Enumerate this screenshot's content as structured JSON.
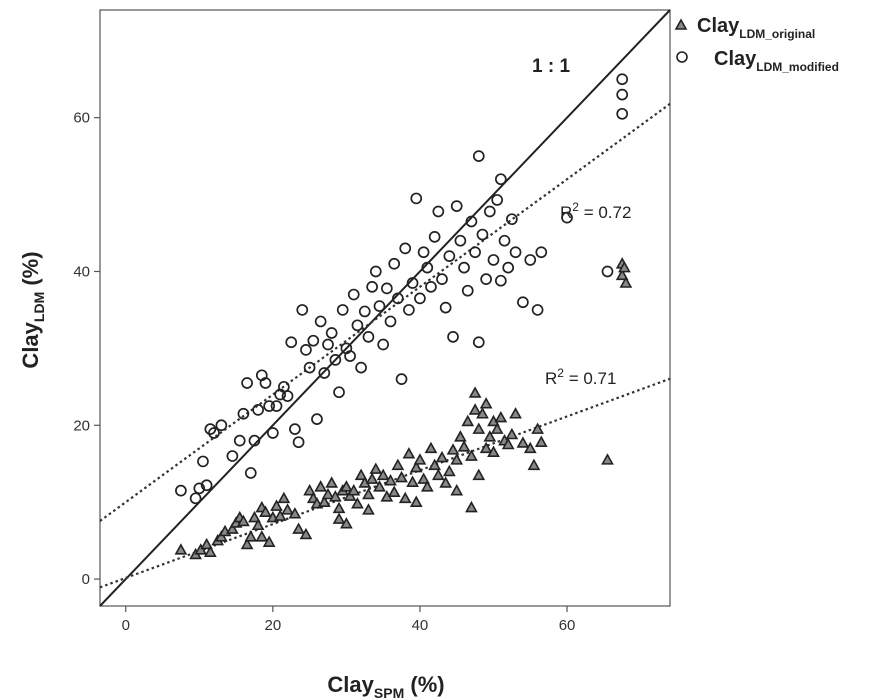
{
  "chart_data": {
    "type": "scatter",
    "title": "",
    "xlabel": {
      "main": "Clay",
      "sub": "SPM",
      "suffix": " (%)"
    },
    "ylabel": {
      "main": "Clay",
      "sub": "LDM",
      "suffix": " (%)"
    },
    "xlim": [
      -3.5,
      74
    ],
    "ylim": [
      -3.5,
      74
    ],
    "xticks": [
      0,
      20,
      40,
      60
    ],
    "yticks": [
      0,
      20,
      40,
      60
    ],
    "grid": false,
    "legend_position": "top-right",
    "identity_line_label": "1 : 1",
    "series": [
      {
        "name": "Clay",
        "name_sub": "LDM_original",
        "marker": "triangle",
        "fit": {
          "slope": 0.35,
          "intercept": 0.15,
          "label": "R",
          "label_sup": "2",
          "label_value": " = 0.71"
        },
        "points": [
          [
            7.5,
            3.8
          ],
          [
            9.5,
            3.2
          ],
          [
            10.2,
            3.8
          ],
          [
            11,
            4.5
          ],
          [
            11.5,
            3.5
          ],
          [
            12.5,
            5
          ],
          [
            13,
            5.5
          ],
          [
            13.5,
            6.2
          ],
          [
            14.5,
            6.5
          ],
          [
            15,
            7.3
          ],
          [
            15.5,
            8
          ],
          [
            16,
            7.5
          ],
          [
            16.5,
            4.5
          ],
          [
            17,
            5.5
          ],
          [
            17.5,
            8
          ],
          [
            18,
            7
          ],
          [
            18.5,
            5.5
          ],
          [
            18.5,
            9.3
          ],
          [
            19,
            8.7
          ],
          [
            19.5,
            4.8
          ],
          [
            20,
            8
          ],
          [
            20.5,
            9.5
          ],
          [
            21,
            8.2
          ],
          [
            21.5,
            10.5
          ],
          [
            22,
            9
          ],
          [
            23,
            8.5
          ],
          [
            23.5,
            6.5
          ],
          [
            24.5,
            5.8
          ],
          [
            25,
            11.5
          ],
          [
            25.5,
            10.5
          ],
          [
            26,
            9.8
          ],
          [
            26.5,
            12
          ],
          [
            27,
            10
          ],
          [
            27.5,
            11
          ],
          [
            28,
            12.5
          ],
          [
            28.5,
            10.7
          ],
          [
            29,
            9.2
          ],
          [
            29,
            7.8
          ],
          [
            29.5,
            11.5
          ],
          [
            30,
            12
          ],
          [
            30,
            7.2
          ],
          [
            30.5,
            10.8
          ],
          [
            31,
            11.5
          ],
          [
            31.5,
            9.8
          ],
          [
            32,
            13.5
          ],
          [
            32.5,
            12.5
          ],
          [
            33,
            11
          ],
          [
            33,
            9
          ],
          [
            33.5,
            13
          ],
          [
            34,
            14.3
          ],
          [
            34.5,
            12
          ],
          [
            35,
            13.5
          ],
          [
            35.5,
            10.7
          ],
          [
            36,
            12.8
          ],
          [
            36.5,
            11.3
          ],
          [
            37,
            14.8
          ],
          [
            37.5,
            13.2
          ],
          [
            38,
            10.5
          ],
          [
            38.5,
            16.3
          ],
          [
            39,
            12.6
          ],
          [
            39.5,
            10
          ],
          [
            39.5,
            14.5
          ],
          [
            40,
            15.5
          ],
          [
            40.5,
            13
          ],
          [
            41,
            12
          ],
          [
            41.5,
            17
          ],
          [
            42,
            14.8
          ],
          [
            42.5,
            13.5
          ],
          [
            43,
            15.8
          ],
          [
            43.5,
            12.5
          ],
          [
            44,
            14
          ],
          [
            44.5,
            16.8
          ],
          [
            45,
            15.5
          ],
          [
            45,
            11.5
          ],
          [
            45.5,
            18.5
          ],
          [
            46,
            17.2
          ],
          [
            46.5,
            20.5
          ],
          [
            47,
            16
          ],
          [
            47,
            9.3
          ],
          [
            47.5,
            22
          ],
          [
            47.5,
            24.2
          ],
          [
            48,
            19.5
          ],
          [
            48,
            13.5
          ],
          [
            48.5,
            21.5
          ],
          [
            49,
            17
          ],
          [
            49,
            22.8
          ],
          [
            49.5,
            18.5
          ],
          [
            50,
            20.5
          ],
          [
            50,
            16.5
          ],
          [
            50.5,
            19.5
          ],
          [
            51,
            21
          ],
          [
            51.5,
            18
          ],
          [
            52,
            17.5
          ],
          [
            52.5,
            18.8
          ],
          [
            53,
            21.5
          ],
          [
            54,
            17.7
          ],
          [
            55,
            17
          ],
          [
            55.5,
            14.8
          ],
          [
            56,
            19.5
          ],
          [
            56.5,
            17.8
          ],
          [
            65.5,
            15.5
          ],
          [
            67.5,
            41
          ],
          [
            67.5,
            39.5
          ],
          [
            68,
            38.5
          ],
          [
            67.8,
            40.5
          ]
        ]
      },
      {
        "name": "Clay",
        "name_sub": "LDM_modified",
        "marker": "circle",
        "fit": {
          "slope": 0.7,
          "intercept": 10,
          "label": "R",
          "label_sup": "2",
          "label_value": " = 0.72"
        },
        "points": [
          [
            7.5,
            11.5
          ],
          [
            9.5,
            10.5
          ],
          [
            10,
            11.8
          ],
          [
            10.5,
            15.3
          ],
          [
            11,
            12.2
          ],
          [
            11.5,
            19.5
          ],
          [
            12,
            19
          ],
          [
            13,
            20
          ],
          [
            14.5,
            16
          ],
          [
            15.5,
            18
          ],
          [
            16,
            21.5
          ],
          [
            16.5,
            25.5
          ],
          [
            17,
            13.8
          ],
          [
            17.5,
            18
          ],
          [
            18,
            22
          ],
          [
            18.5,
            26.5
          ],
          [
            19,
            25.5
          ],
          [
            19.5,
            22.5
          ],
          [
            20,
            19
          ],
          [
            20.5,
            22.5
          ],
          [
            21,
            24
          ],
          [
            21.5,
            25
          ],
          [
            22,
            23.8
          ],
          [
            22.5,
            30.8
          ],
          [
            23,
            19.5
          ],
          [
            23.5,
            17.8
          ],
          [
            24,
            35
          ],
          [
            24.5,
            29.8
          ],
          [
            25,
            27.5
          ],
          [
            25.5,
            31
          ],
          [
            26,
            20.8
          ],
          [
            26.5,
            33.5
          ],
          [
            27,
            26.8
          ],
          [
            27.5,
            30.5
          ],
          [
            28,
            32
          ],
          [
            28.5,
            28.5
          ],
          [
            29,
            24.3
          ],
          [
            29.5,
            35
          ],
          [
            30,
            30
          ],
          [
            30.5,
            29
          ],
          [
            31,
            37
          ],
          [
            31.5,
            33
          ],
          [
            32,
            27.5
          ],
          [
            32.5,
            34.8
          ],
          [
            33,
            31.5
          ],
          [
            33.5,
            38
          ],
          [
            34,
            40
          ],
          [
            34.5,
            35.5
          ],
          [
            35,
            30.5
          ],
          [
            35.5,
            37.8
          ],
          [
            36,
            33.5
          ],
          [
            36.5,
            41
          ],
          [
            37,
            36.5
          ],
          [
            37.5,
            26
          ],
          [
            38,
            43
          ],
          [
            38.5,
            35
          ],
          [
            39,
            38.5
          ],
          [
            39.5,
            49.5
          ],
          [
            40,
            36.5
          ],
          [
            40.5,
            42.5
          ],
          [
            41,
            40.5
          ],
          [
            41.5,
            38
          ],
          [
            42,
            44.5
          ],
          [
            42.5,
            47.8
          ],
          [
            43,
            39
          ],
          [
            43.5,
            35.3
          ],
          [
            44,
            42
          ],
          [
            44.5,
            31.5
          ],
          [
            45,
            48.5
          ],
          [
            45.5,
            44
          ],
          [
            46,
            40.5
          ],
          [
            46.5,
            37.5
          ],
          [
            47,
            46.5
          ],
          [
            47.5,
            42.5
          ],
          [
            48,
            55
          ],
          [
            48,
            30.8
          ],
          [
            48.5,
            44.8
          ],
          [
            49,
            39
          ],
          [
            49.5,
            47.8
          ],
          [
            50,
            41.5
          ],
          [
            50.5,
            49.3
          ],
          [
            51,
            52
          ],
          [
            51,
            38.8
          ],
          [
            51.5,
            44
          ],
          [
            52,
            40.5
          ],
          [
            52.5,
            46.8
          ],
          [
            53,
            42.5
          ],
          [
            54,
            36
          ],
          [
            55,
            41.5
          ],
          [
            56,
            35
          ],
          [
            56.5,
            42.5
          ],
          [
            60,
            47
          ],
          [
            65.5,
            40
          ],
          [
            67.5,
            65
          ],
          [
            67.5,
            63
          ],
          [
            67.5,
            60.5
          ]
        ]
      }
    ]
  }
}
